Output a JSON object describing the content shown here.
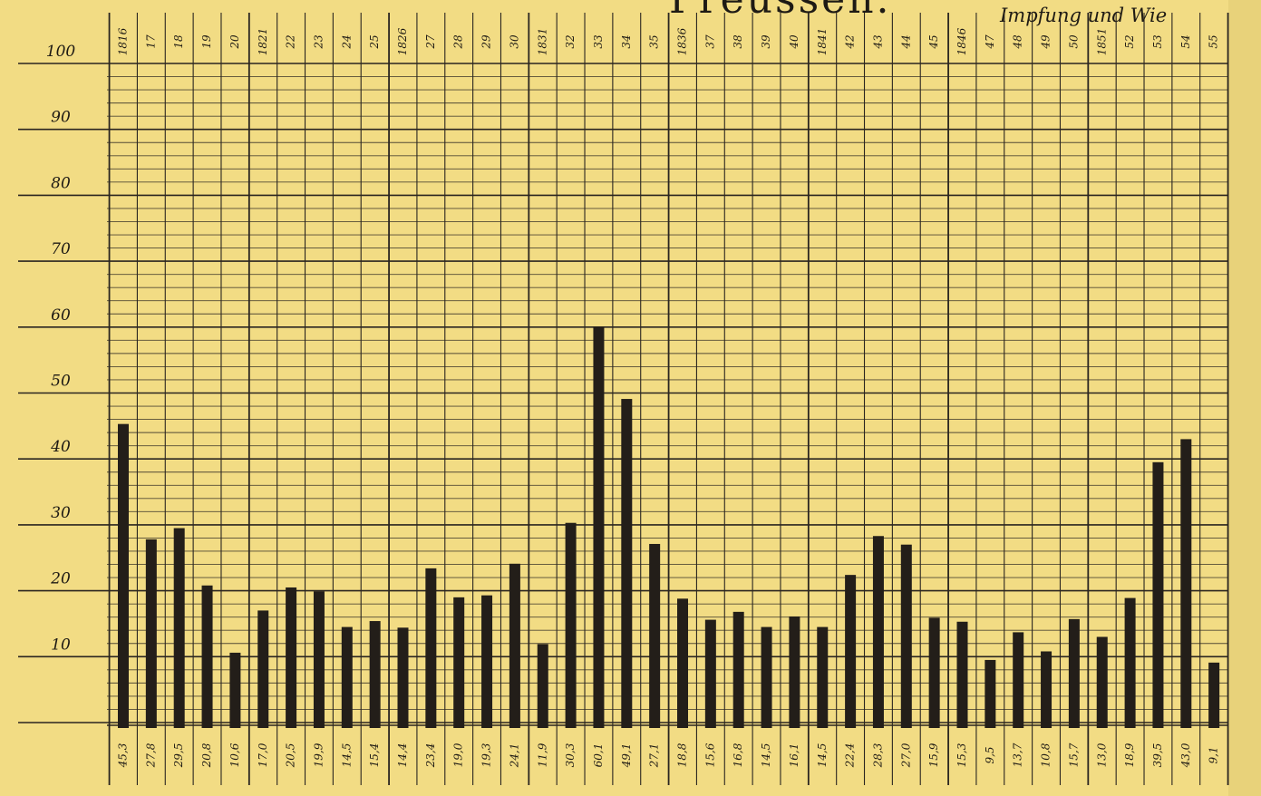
{
  "page": {
    "title": "Preussen.",
    "subtitle": "Impfung und Wie"
  },
  "chart_data": {
    "type": "bar",
    "title": "Preussen.",
    "subtitle": "Impfung und Wie",
    "xlabel": "",
    "ylabel": "",
    "ylim": [
      0,
      100
    ],
    "yticks": [
      "100",
      "90",
      "80",
      "70",
      "60",
      "50",
      "40",
      "30",
      "20",
      "10"
    ],
    "grid": true,
    "legend": "none",
    "colors": {
      "background": "#f2dc84",
      "bar": "#231e19",
      "grid": "#2a2520"
    },
    "categories": [
      "1816",
      "17",
      "18",
      "19",
      "20",
      "1821",
      "22",
      "23",
      "24",
      "25",
      "1826",
      "27",
      "28",
      "29",
      "30",
      "1831",
      "32",
      "33",
      "34",
      "35",
      "1836",
      "37",
      "38",
      "39",
      "40",
      "1841",
      "42",
      "43",
      "44",
      "45",
      "1846",
      "47",
      "48",
      "49",
      "50",
      "1851",
      "52",
      "53",
      "54",
      "55"
    ],
    "values": [
      45.3,
      27.8,
      29.5,
      20.8,
      10.6,
      17.0,
      20.5,
      19.9,
      14.5,
      15.4,
      14.4,
      23.4,
      19.0,
      19.3,
      24.1,
      11.9,
      30.3,
      60.1,
      49.1,
      27.1,
      18.8,
      15.6,
      16.8,
      14.5,
      16.1,
      14.5,
      22.4,
      28.3,
      27.0,
      15.9,
      15.3,
      9.5,
      13.7,
      10.8,
      15.7,
      13.0,
      18.9,
      39.5,
      43.0,
      9.1
    ],
    "value_labels": [
      "45,3",
      "27,8",
      "29,5",
      "20,8",
      "10,6",
      "17,0",
      "20,5",
      "19,9",
      "14,5",
      "15,4",
      "14,4",
      "23,4",
      "19,0",
      "19,3",
      "24,1",
      "11,9",
      "30,3",
      "60,1",
      "49,1",
      "27,1",
      "18,8",
      "15,6",
      "16,8",
      "14,5",
      "16,1",
      "14,5",
      "22,4",
      "28,3",
      "27,0",
      "15,9",
      "15,3",
      "9,5",
      "13,7",
      "10,8",
      "15,7",
      "13,0",
      "18,9",
      "39,5",
      "43,0",
      "9,1"
    ]
  }
}
